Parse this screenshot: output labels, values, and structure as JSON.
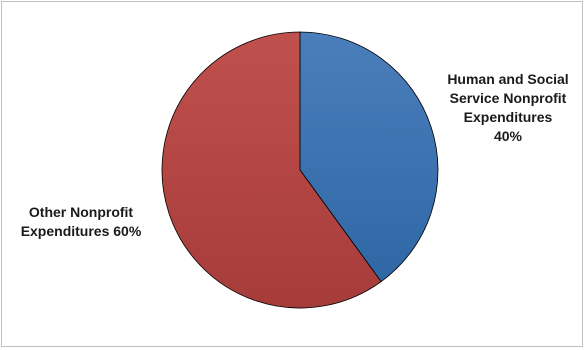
{
  "chart_data": {
    "type": "pie",
    "slices": [
      {
        "label_lines": [
          "Human and Social",
          "Service Nonprofit",
          "Expenditures",
          "40%"
        ],
        "value": 40,
        "color": "#4a7ebb",
        "color_dark": "#2f67a5"
      },
      {
        "label_lines": [
          "Other Nonprofit",
          "Expenditures 60%"
        ],
        "value": 60,
        "color": "#c0504d",
        "color_dark": "#a63c3a"
      }
    ],
    "start": "12 o'clock",
    "direction": "clockwise",
    "legend": "none",
    "title": ""
  }
}
